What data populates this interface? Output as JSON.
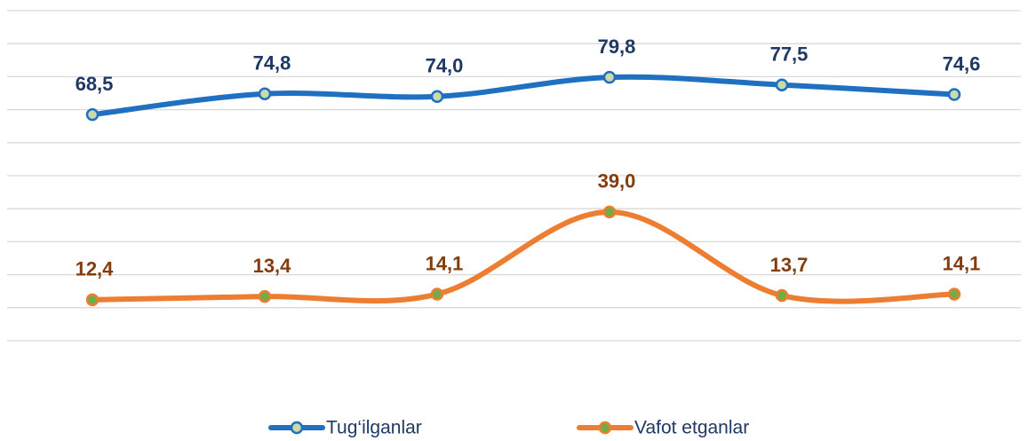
{
  "chart_data": {
    "type": "line",
    "categories": [
      null,
      null,
      null,
      null,
      null,
      null
    ],
    "series": [
      {
        "name": "Tug‘ilganlar",
        "color": "#1f70c1",
        "marker_color": "#c9dba8",
        "label_color": "#1f3864",
        "values": [
          68.5,
          74.8,
          74.0,
          79.8,
          77.5,
          74.6
        ],
        "value_labels": [
          "68,5",
          "74,8",
          "74,0",
          "79,8",
          "77,5",
          "74,6"
        ]
      },
      {
        "name": "Vafot etganlar",
        "color": "#ed7d31",
        "marker_color": "#70ad47",
        "label_color": "#843c0c",
        "values": [
          12.4,
          13.4,
          14.1,
          39.0,
          13.7,
          14.1
        ],
        "value_labels": [
          "12,4",
          "13,4",
          "14,1",
          "39,0",
          "13,7",
          "14,1"
        ]
      }
    ],
    "ylim": [
      0,
      100
    ],
    "yticks": [
      0,
      10,
      20,
      30,
      40,
      50,
      60,
      70,
      80,
      90,
      100
    ],
    "grid": true,
    "legend": "bottom"
  }
}
